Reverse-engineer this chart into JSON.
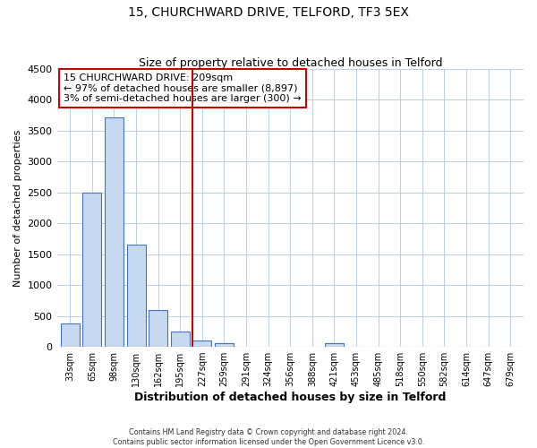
{
  "title": "15, CHURCHWARD DRIVE, TELFORD, TF3 5EX",
  "subtitle": "Size of property relative to detached houses in Telford",
  "xlabel": "Distribution of detached houses by size in Telford",
  "ylabel": "Number of detached properties",
  "bin_labels": [
    "33sqm",
    "65sqm",
    "98sqm",
    "130sqm",
    "162sqm",
    "195sqm",
    "227sqm",
    "259sqm",
    "291sqm",
    "324sqm",
    "356sqm",
    "388sqm",
    "421sqm",
    "453sqm",
    "485sqm",
    "518sqm",
    "550sqm",
    "582sqm",
    "614sqm",
    "647sqm",
    "679sqm"
  ],
  "bar_heights": [
    375,
    2500,
    3720,
    1650,
    600,
    245,
    100,
    55,
    0,
    0,
    0,
    0,
    55,
    0,
    0,
    0,
    0,
    0,
    0,
    0,
    0
  ],
  "bar_color": "#c6d9f0",
  "bar_edge_color": "#4472c4",
  "property_line_x": 5.545,
  "property_line_color": "#cc0000",
  "annotation_title": "15 CHURCHWARD DRIVE: 209sqm",
  "annotation_line1": "← 97% of detached houses are smaller (8,897)",
  "annotation_line2": "3% of semi-detached houses are larger (300) →",
  "annotation_box_color": "#ffffff",
  "annotation_box_edge": "#cc0000",
  "ylim": [
    0,
    4500
  ],
  "yticks": [
    0,
    500,
    1000,
    1500,
    2000,
    2500,
    3000,
    3500,
    4000,
    4500
  ],
  "footer_line1": "Contains HM Land Registry data © Crown copyright and database right 2024.",
  "footer_line2": "Contains public sector information licensed under the Open Government Licence v3.0.",
  "background_color": "#ffffff",
  "grid_color": "#c0cfe0"
}
